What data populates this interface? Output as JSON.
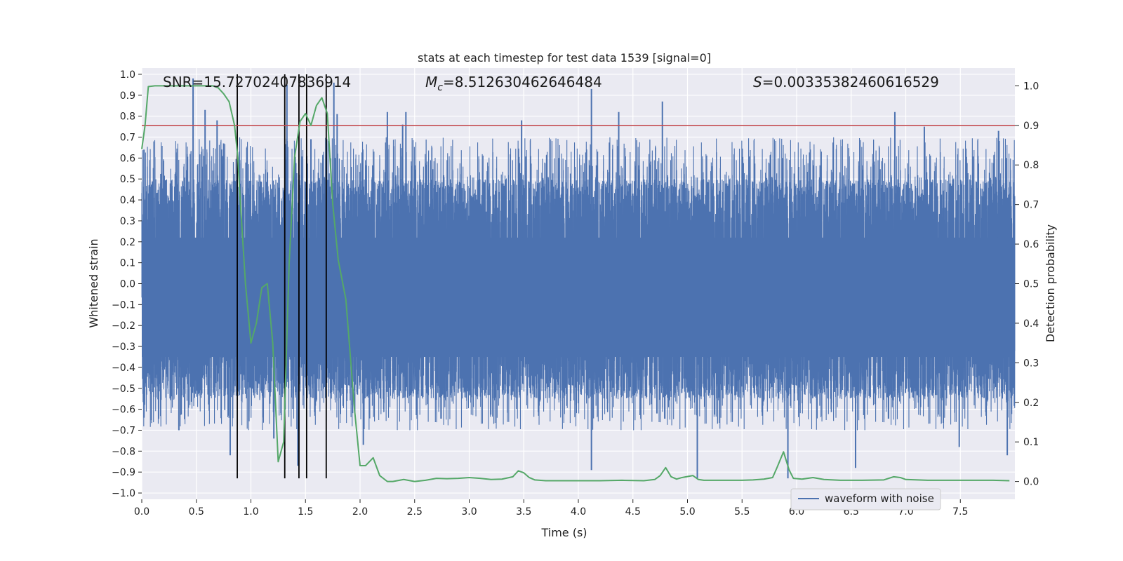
{
  "chart_data": {
    "type": "line",
    "title": "stats at each timestep for test data 1539 [signal=0]",
    "xlabel": "Time (s)",
    "ylabel": "Whitened strain",
    "y2label": "Detection probability",
    "xlim": [
      0.0,
      8.0
    ],
    "ylim": [
      -1.03,
      1.03
    ],
    "y2lim": [
      -0.045,
      1.045
    ],
    "x_ticks": [
      0.0,
      0.5,
      1.0,
      1.5,
      2.0,
      2.5,
      3.0,
      3.5,
      4.0,
      4.5,
      5.0,
      5.5,
      6.0,
      6.5,
      7.0,
      7.5
    ],
    "x_tick_labels": [
      "0.0",
      "0.5",
      "1.0",
      "1.5",
      "2.0",
      "2.5",
      "3.0",
      "3.5",
      "4.0",
      "4.5",
      "5.0",
      "5.5",
      "6.0",
      "6.5",
      "7.0",
      "7.5"
    ],
    "y_ticks": [
      1.0,
      0.9,
      0.8,
      0.7,
      0.6,
      0.5,
      0.4,
      0.3,
      0.2,
      0.1,
      0.0,
      -0.1,
      -0.2,
      -0.3,
      -0.4,
      -0.5,
      -0.6,
      -0.7,
      -0.8,
      -0.9,
      -1.0
    ],
    "y_tick_labels": [
      "1.0",
      "0.9",
      "0.8",
      "0.7",
      "0.6",
      "0.5",
      "0.4",
      "0.3",
      "0.2",
      "0.1",
      "0.0",
      "−0.1",
      "−0.2",
      "−0.3",
      "−0.4",
      "−0.5",
      "−0.6",
      "−0.7",
      "−0.8",
      "−0.9",
      "−1.0"
    ],
    "y2_ticks": [
      1.0,
      0.9,
      0.8,
      0.7,
      0.6,
      0.5,
      0.4,
      0.3,
      0.2,
      0.1,
      0.0
    ],
    "y2_tick_labels": [
      "1.0",
      "0.9",
      "0.8",
      "0.7",
      "0.6",
      "0.5",
      "0.4",
      "0.3",
      "0.2",
      "0.1",
      "0.0"
    ],
    "grid": true,
    "legend": {
      "entries": [
        "waveform with noise"
      ],
      "placement": "lower-right"
    },
    "annotations": {
      "snr": "SNR=15.72702407836914",
      "mc_symbol": "M",
      "mc_sub": "c",
      "mc_value": "=8.512630462646484",
      "s_symbol": "S",
      "s_value": "=0.00335382460616529"
    },
    "threshold": {
      "value": 0.9,
      "axis": "right",
      "color": "#c44e52"
    },
    "vertical_markers": {
      "x": [
        0.875,
        1.31,
        1.44,
        1.51,
        1.69
      ],
      "y_range": [
        -0.93,
        1.0
      ],
      "color": "#000000"
    },
    "series": [
      {
        "name": "waveform with noise",
        "axis": "left",
        "color": "#4c72b0",
        "sample_rate_hz": 2048,
        "core_band": [
          -0.35,
          0.22
        ],
        "envelope_band": [
          -0.55,
          0.5
        ],
        "spikes": [
          {
            "x": 0.02,
            "y": 0.64
          },
          {
            "x": 0.02,
            "y": -0.64
          },
          {
            "x": 0.47,
            "y": 0.98
          },
          {
            "x": 0.58,
            "y": 0.83
          },
          {
            "x": 0.69,
            "y": 0.78
          },
          {
            "x": 0.75,
            "y": 0.67
          },
          {
            "x": 0.81,
            "y": -0.82
          },
          {
            "x": 0.34,
            "y": -0.7
          },
          {
            "x": 1.21,
            "y": -0.74
          },
          {
            "x": 1.33,
            "y": 0.95
          },
          {
            "x": 1.43,
            "y": -0.87
          },
          {
            "x": 1.55,
            "y": 0.69
          },
          {
            "x": 1.76,
            "y": 0.96
          },
          {
            "x": 1.79,
            "y": 0.81
          },
          {
            "x": 2.03,
            "y": -0.77
          },
          {
            "x": 2.25,
            "y": 0.82
          },
          {
            "x": 2.39,
            "y": 0.76
          },
          {
            "x": 2.42,
            "y": 0.82
          },
          {
            "x": 3.48,
            "y": 0.78
          },
          {
            "x": 4.12,
            "y": 0.93
          },
          {
            "x": 4.12,
            "y": -0.89
          },
          {
            "x": 4.37,
            "y": 0.82
          },
          {
            "x": 4.77,
            "y": 0.87
          },
          {
            "x": 4.72,
            "y": -0.62
          },
          {
            "x": 5.09,
            "y": -0.93
          },
          {
            "x": 5.92,
            "y": -0.93
          },
          {
            "x": 6.54,
            "y": -0.88
          },
          {
            "x": 6.9,
            "y": 0.82
          },
          {
            "x": 7.17,
            "y": 0.75
          },
          {
            "x": 7.49,
            "y": -0.78
          },
          {
            "x": 7.85,
            "y": 0.73
          },
          {
            "x": 7.93,
            "y": -0.82
          }
        ]
      },
      {
        "name": "",
        "axis": "right",
        "color": "#55a868",
        "x": [
          0.0,
          0.03,
          0.06,
          0.12,
          0.2,
          0.3,
          0.4,
          0.5,
          0.6,
          0.65,
          0.7,
          0.75,
          0.8,
          0.85,
          0.88,
          0.9,
          0.95,
          1.0,
          1.05,
          1.1,
          1.15,
          1.2,
          1.25,
          1.3,
          1.35,
          1.4,
          1.45,
          1.5,
          1.55,
          1.6,
          1.65,
          1.7,
          1.75,
          1.8,
          1.87,
          1.95,
          2.0,
          2.05,
          2.12,
          2.18,
          2.25,
          2.3,
          2.4,
          2.5,
          2.6,
          2.7,
          2.8,
          2.9,
          3.0,
          3.1,
          3.2,
          3.3,
          3.4,
          3.45,
          3.5,
          3.55,
          3.6,
          3.7,
          3.8,
          3.9,
          4.0,
          4.2,
          4.4,
          4.6,
          4.7,
          4.75,
          4.8,
          4.85,
          4.9,
          4.95,
          5.05,
          5.1,
          5.15,
          5.3,
          5.5,
          5.6,
          5.7,
          5.78,
          5.82,
          5.88,
          5.93,
          5.97,
          6.05,
          6.15,
          6.25,
          6.4,
          6.6,
          6.8,
          6.89,
          6.95,
          7.0,
          7.2,
          7.5,
          7.8,
          7.95
        ],
        "y": [
          0.84,
          0.9,
          0.998,
          1.0,
          1.0,
          1.0,
          1.0,
          1.0,
          1.0,
          1.0,
          0.995,
          0.98,
          0.96,
          0.9,
          0.82,
          0.72,
          0.5,
          0.35,
          0.4,
          0.49,
          0.5,
          0.35,
          0.05,
          0.1,
          0.55,
          0.82,
          0.91,
          0.93,
          0.9,
          0.95,
          0.97,
          0.93,
          0.7,
          0.56,
          0.46,
          0.18,
          0.04,
          0.04,
          0.06,
          0.015,
          0.0,
          0.0,
          0.005,
          0.0,
          0.003,
          0.008,
          0.007,
          0.008,
          0.01,
          0.008,
          0.005,
          0.006,
          0.012,
          0.027,
          0.022,
          0.01,
          0.004,
          0.002,
          0.002,
          0.002,
          0.002,
          0.002,
          0.003,
          0.002,
          0.005,
          0.015,
          0.035,
          0.012,
          0.006,
          0.01,
          0.015,
          0.005,
          0.003,
          0.003,
          0.003,
          0.004,
          0.006,
          0.01,
          0.035,
          0.075,
          0.03,
          0.008,
          0.006,
          0.01,
          0.005,
          0.003,
          0.003,
          0.004,
          0.012,
          0.01,
          0.005,
          0.003,
          0.003,
          0.003,
          0.002
        ]
      }
    ]
  }
}
